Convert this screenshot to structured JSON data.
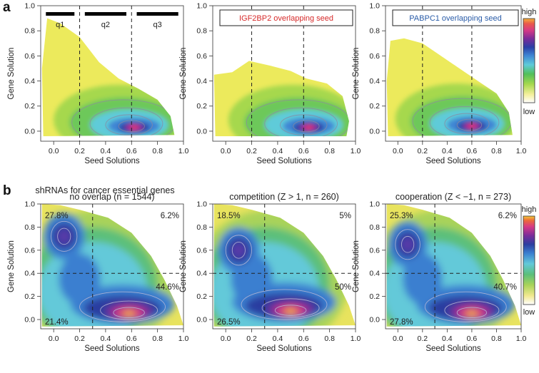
{
  "figure": {
    "panels": [
      {
        "letter": "a",
        "charts": [
          {
            "id": "a1",
            "type": "heatmap",
            "xlabel": "Seed Solutions",
            "ylabel": "Gene Solution",
            "xticks": [
              "0.0",
              "0.2",
              "0.4",
              "0.6",
              "0.8",
              "1.0"
            ],
            "yticks": [
              "0.0",
              "0.2",
              "0.4",
              "0.6",
              "0.8",
              "1.0"
            ],
            "xlim": [
              -0.1,
              1.0
            ],
            "ylim": [
              -0.08,
              1.0
            ],
            "vlines": [
              0.2,
              0.6
            ],
            "quantile_bars": [
              {
                "label": "q1",
                "x0": -0.06,
                "x1": 0.16
              },
              {
                "label": "q2",
                "x0": 0.24,
                "x1": 0.56
              },
              {
                "label": "q3",
                "x0": 0.64,
                "x1": 0.96
              }
            ],
            "peak": [
              0.62,
              0.03
            ],
            "shape": "wedge_full"
          },
          {
            "id": "a2",
            "type": "heatmap",
            "xlabel": "Seed Solutions",
            "ylabel": "Gene Solution",
            "xticks": [
              "0.0",
              "0.2",
              "0.4",
              "0.6",
              "0.8",
              "1.0"
            ],
            "yticks": [
              "0.0",
              "0.2",
              "0.4",
              "0.6",
              "0.8",
              "1.0"
            ],
            "xlim": [
              -0.1,
              1.0
            ],
            "ylim": [
              -0.08,
              1.0
            ],
            "vlines": [
              0.2,
              0.6
            ],
            "legend_box": {
              "text": "IGF2BP2 overlapping seed",
              "color": "#d62a2a"
            },
            "peak": [
              0.64,
              0.03
            ],
            "shape": "wedge_short"
          },
          {
            "id": "a3",
            "type": "heatmap",
            "xlabel": "Seed Solutions",
            "ylabel": "Gene Solution",
            "xticks": [
              "0.0",
              "0.2",
              "0.4",
              "0.6",
              "0.8",
              "1.0"
            ],
            "yticks": [
              "0.0",
              "0.2",
              "0.4",
              "0.6",
              "0.8",
              "1.0"
            ],
            "xlim": [
              -0.1,
              1.0
            ],
            "ylim": [
              -0.08,
              1.0
            ],
            "vlines": [
              0.2,
              0.6
            ],
            "legend_box": {
              "text": "PABPC1 overlapping seed",
              "color": "#2a5ca8"
            },
            "peak": [
              0.6,
              0.04
            ],
            "shape": "wedge_mid"
          }
        ],
        "colorbar": {
          "high": "high",
          "low": "low"
        }
      },
      {
        "letter": "b",
        "section_title": "shRNAs for cancer essential genes",
        "charts": [
          {
            "id": "b1",
            "type": "heatmap",
            "title": "no overlap (n = 1544)",
            "xlabel": "Seed Solutions",
            "ylabel": "Gene Solution",
            "xticks": [
              "0.0",
              "0.2",
              "0.4",
              "0.6",
              "0.8",
              "1.0"
            ],
            "yticks": [
              "0.0",
              "0.2",
              "0.4",
              "0.6",
              "0.8",
              "1.0"
            ],
            "xlim": [
              -0.1,
              1.0
            ],
            "ylim": [
              -0.08,
              1.0
            ],
            "vline": 0.3,
            "hline": 0.4,
            "quadrants": {
              "tl": "27.8%",
              "tr": "6.2%",
              "br": "44.6%",
              "bl": "21.4%"
            },
            "peak": [
              0.58,
              0.05
            ],
            "second_peak": [
              0.08,
              0.72
            ]
          },
          {
            "id": "b2",
            "type": "heatmap",
            "title": "competition (Z > 1, n = 260)",
            "xlabel": "Seed Solutions",
            "ylabel": "Gene Solution",
            "xticks": [
              "0.0",
              "0.2",
              "0.4",
              "0.6",
              "0.8",
              "1.0"
            ],
            "yticks": [
              "0.0",
              "0.2",
              "0.4",
              "0.6",
              "0.8",
              "1.0"
            ],
            "xlim": [
              -0.1,
              1.0
            ],
            "ylim": [
              -0.08,
              1.0
            ],
            "vline": 0.3,
            "hline": 0.4,
            "quadrants": {
              "tl": "18.5%",
              "tr": "5%",
              "br": "50%",
              "bl": "26.5%"
            },
            "peak": [
              0.5,
              0.07
            ],
            "second_peak": [
              0.1,
              0.6
            ]
          },
          {
            "id": "b3",
            "type": "heatmap",
            "title": "cooperation (Z < −1, n = 273)",
            "xlabel": "Seed Solutions",
            "ylabel": "Gene Solution",
            "xticks": [
              "0.0",
              "0.2",
              "0.4",
              "0.6",
              "0.8",
              "1.0"
            ],
            "yticks": [
              "0.0",
              "0.2",
              "0.4",
              "0.6",
              "0.8",
              "1.0"
            ],
            "xlim": [
              -0.1,
              1.0
            ],
            "ylim": [
              -0.08,
              1.0
            ],
            "vline": 0.3,
            "hline": 0.4,
            "quadrants": {
              "tl": "25.3%",
              "tr": "6.2%",
              "br": "40.7%",
              "bl": "27.8%"
            },
            "peak": [
              0.6,
              0.05
            ],
            "second_peak": [
              0.08,
              0.65
            ]
          }
        ],
        "colorbar": {
          "high": "high",
          "low": "low"
        }
      }
    ],
    "colorscale": [
      "#ffffff",
      "#f7f3a0",
      "#e9e85a",
      "#9bd24a",
      "#4fbf5a",
      "#5ac8d8",
      "#4a8fd8",
      "#2c4fb0",
      "#3a2f9a",
      "#8a2a9a",
      "#d43a8a",
      "#e8505a",
      "#f08a3a",
      "#f3c33a"
    ]
  },
  "chart_data": [
    {
      "type": "heatmap",
      "title": "",
      "xlabel": "Seed Solutions",
      "ylabel": "Gene Solution",
      "xlim": [
        -0.1,
        1.0
      ],
      "ylim": [
        -0.08,
        1.0
      ],
      "annotations": [
        "q1",
        "q2",
        "q3"
      ],
      "vlines": [
        0.2,
        0.6
      ]
    },
    {
      "type": "heatmap",
      "title": "IGF2BP2 overlapping seed",
      "xlabel": "Seed Solutions",
      "ylabel": "Gene Solution",
      "xlim": [
        -0.1,
        1.0
      ],
      "ylim": [
        -0.08,
        1.0
      ],
      "vlines": [
        0.2,
        0.6
      ]
    },
    {
      "type": "heatmap",
      "title": "PABPC1 overlapping seed",
      "xlabel": "Seed Solutions",
      "ylabel": "Gene Solution",
      "xlim": [
        -0.1,
        1.0
      ],
      "ylim": [
        -0.08,
        1.0
      ],
      "vlines": [
        0.2,
        0.6
      ]
    },
    {
      "type": "heatmap",
      "title": "no overlap (n = 1544)",
      "xlabel": "Seed Solutions",
      "ylabel": "Gene Solution",
      "quadrants": [
        "27.8%",
        "6.2%",
        "44.6%",
        "21.4%"
      ]
    },
    {
      "type": "heatmap",
      "title": "competition (Z > 1, n = 260)",
      "xlabel": "Seed Solutions",
      "ylabel": "Gene Solution",
      "quadrants": [
        "18.5%",
        "5%",
        "50%",
        "26.5%"
      ]
    },
    {
      "type": "heatmap",
      "title": "cooperation (Z < −1, n = 273)",
      "xlabel": "Seed Solutions",
      "ylabel": "Gene Solution",
      "quadrants": [
        "25.3%",
        "6.2%",
        "40.7%",
        "27.8%"
      ]
    }
  ]
}
